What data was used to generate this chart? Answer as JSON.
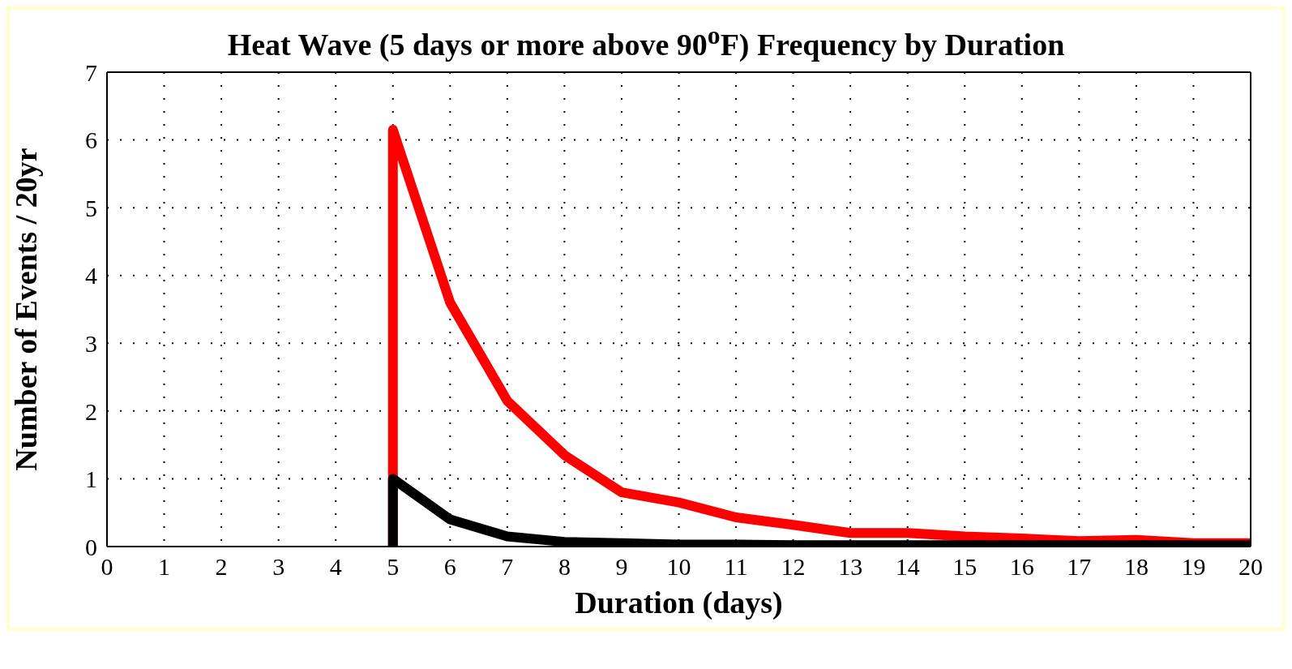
{
  "chart_data": {
    "type": "line",
    "title": "Heat Wave (5 days or more above 90$^{o}$F) Frequency by Duration",
    "xlabel": "Duration (days)",
    "ylabel": "Number of Events / 20yr",
    "xlim": [
      0,
      20
    ],
    "xticks": [
      0,
      1,
      2,
      3,
      4,
      5,
      6,
      7,
      8,
      9,
      10,
      11,
      12,
      13,
      14,
      15,
      16,
      17,
      18,
      19,
      20
    ],
    "ylim": [
      0,
      7
    ],
    "yticks": [
      0,
      1,
      2,
      3,
      4,
      5,
      6,
      7
    ],
    "grid": true,
    "marker": "none",
    "line_style": "solid",
    "series": [
      {
        "color": "#ff0000",
        "x": [
          5,
          5,
          6,
          7,
          8,
          9,
          10,
          11,
          12,
          13,
          14,
          15,
          16,
          17,
          18,
          19,
          20
        ],
        "values": [
          0,
          6.15,
          3.6,
          2.15,
          1.35,
          0.8,
          0.65,
          0.43,
          0.32,
          0.2,
          0.2,
          0.15,
          0.12,
          0.08,
          0.1,
          0.05,
          0.05
        ]
      },
      {
        "color": "#000000",
        "x": [
          5,
          5,
          6,
          7,
          8,
          9,
          10,
          11,
          12,
          13,
          14,
          15,
          16,
          17,
          18,
          19,
          20
        ],
        "values": [
          0,
          1.0,
          0.4,
          0.15,
          0.07,
          0.05,
          0.03,
          0.03,
          0.02,
          0.02,
          0.02,
          0.02,
          0.02,
          0.02,
          0.02,
          0.02,
          0.02
        ]
      }
    ]
  }
}
